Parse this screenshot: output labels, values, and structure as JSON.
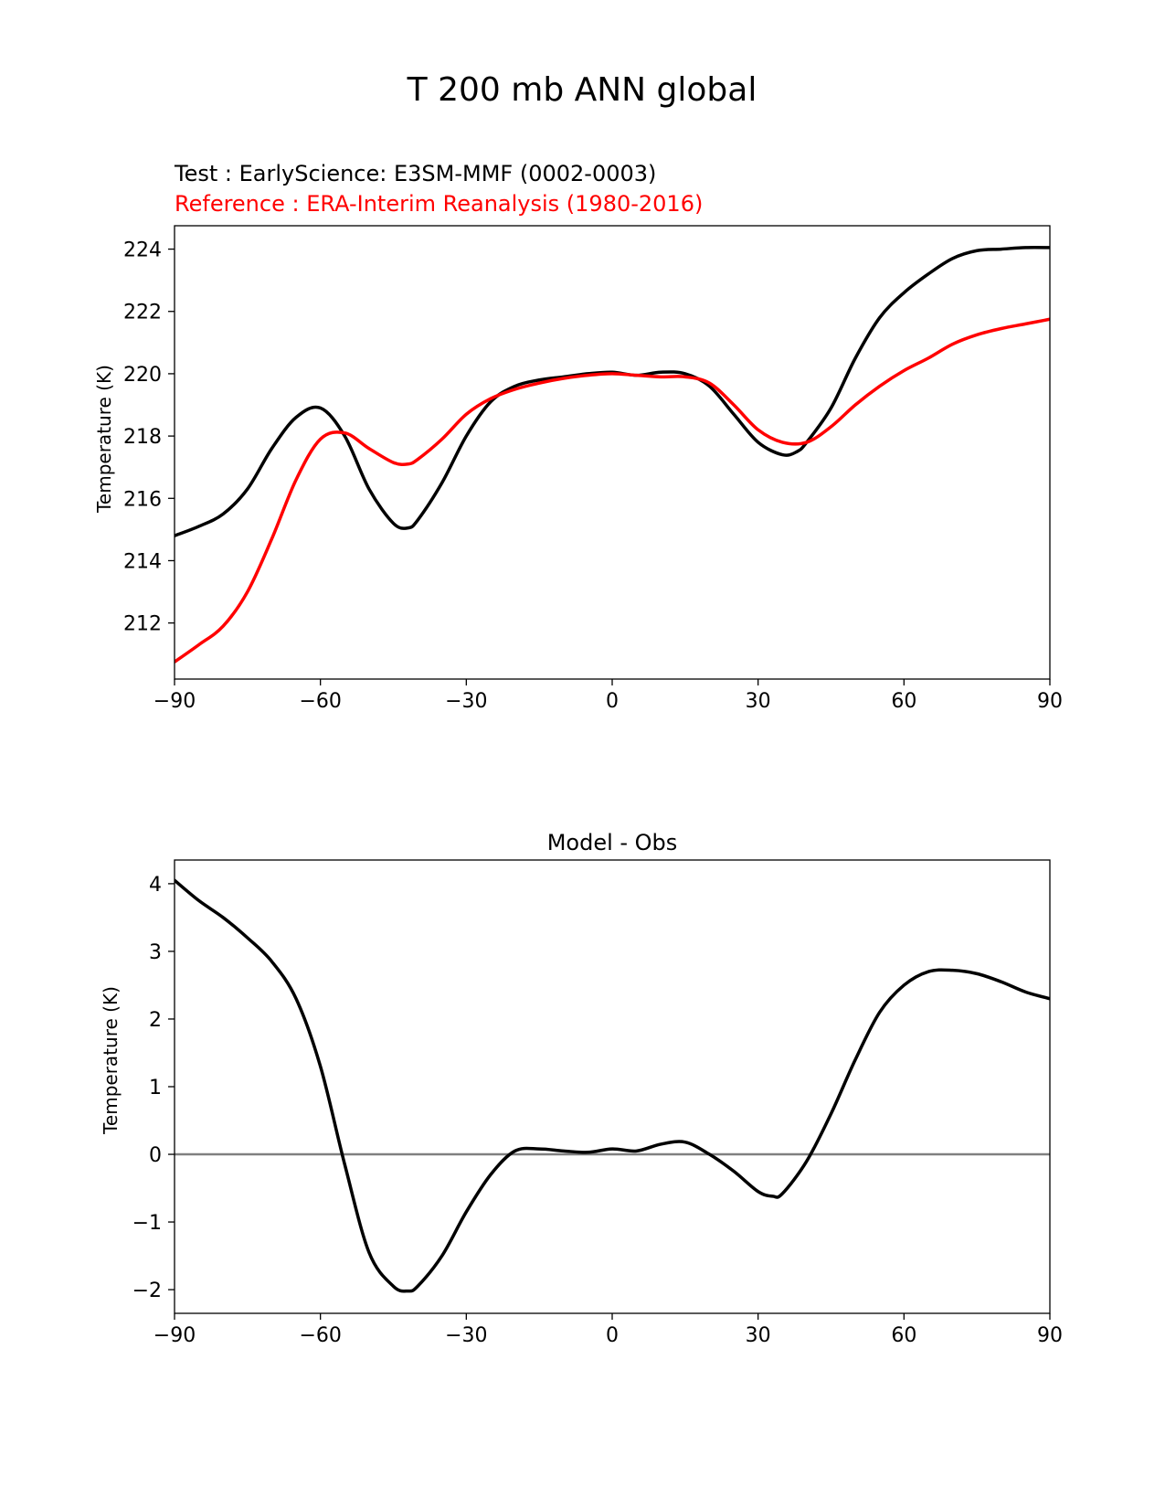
{
  "suptitle": "T 200 mb ANN global",
  "colors": {
    "test": "#000000",
    "reference": "#ff0000",
    "zero_line": "#808080",
    "axis": "#000000"
  },
  "chart_data": [
    {
      "type": "line",
      "title": "",
      "test_label": "Test : EarlyScience: E3SM-MMF (0002-0003)",
      "reference_label": "Reference : ERA-Interim Reanalysis (1980-2016)",
      "xlabel": "",
      "ylabel": "Temperature (K)",
      "xlim": [
        -90,
        90
      ],
      "ylim": [
        210.2,
        224.75
      ],
      "xticks": [
        -90,
        -60,
        -30,
        0,
        30,
        60,
        90
      ],
      "xtick_labels": [
        "−90",
        "−60",
        "−30",
        "0",
        "30",
        "60",
        "90"
      ],
      "yticks": [
        212,
        214,
        216,
        218,
        220,
        222,
        224
      ],
      "yticks_labels": [
        "212",
        "214",
        "216",
        "218",
        "220",
        "222",
        "224"
      ],
      "series": [
        {
          "name": "Test : EarlyScience: E3SM-MMF (0002-0003)",
          "color": "#000000",
          "x": [
            -90,
            -85,
            -80,
            -75,
            -70,
            -65,
            -60,
            -55,
            -50,
            -45,
            -42,
            -40,
            -35,
            -30,
            -25,
            -20,
            -15,
            -10,
            -5,
            0,
            5,
            10,
            15,
            20,
            25,
            30,
            35,
            38,
            40,
            45,
            50,
            55,
            60,
            65,
            70,
            75,
            80,
            85,
            90
          ],
          "y": [
            214.8,
            215.1,
            215.5,
            216.3,
            217.6,
            218.6,
            218.9,
            218.0,
            216.3,
            215.2,
            215.05,
            215.3,
            216.5,
            218.0,
            219.1,
            219.6,
            219.8,
            219.9,
            220.0,
            220.05,
            219.95,
            220.05,
            220.0,
            219.6,
            218.7,
            217.8,
            217.4,
            217.5,
            217.8,
            218.9,
            220.5,
            221.8,
            222.6,
            223.2,
            223.7,
            223.95,
            224.0,
            224.05,
            224.05
          ]
        },
        {
          "name": "Reference : ERA-Interim Reanalysis (1980-2016)",
          "color": "#ff0000",
          "x": [
            -90,
            -85,
            -80,
            -75,
            -70,
            -65,
            -60,
            -55,
            -50,
            -45,
            -42,
            -40,
            -35,
            -30,
            -25,
            -20,
            -15,
            -10,
            -5,
            0,
            5,
            10,
            15,
            20,
            25,
            30,
            35,
            40,
            45,
            50,
            55,
            60,
            65,
            70,
            75,
            80,
            85,
            90
          ],
          "y": [
            210.75,
            211.3,
            211.9,
            213.0,
            214.7,
            216.6,
            217.9,
            218.1,
            217.6,
            217.15,
            217.1,
            217.25,
            217.9,
            218.7,
            219.2,
            219.5,
            219.7,
            219.85,
            219.95,
            220.0,
            219.95,
            219.9,
            219.9,
            219.7,
            219.0,
            218.2,
            217.8,
            217.8,
            218.3,
            219.0,
            219.6,
            220.1,
            220.5,
            220.95,
            221.25,
            221.45,
            221.6,
            221.75
          ]
        }
      ]
    },
    {
      "type": "line",
      "title": "Model - Obs",
      "xlabel": "",
      "ylabel": "Temperature (K)",
      "xlim": [
        -90,
        90
      ],
      "ylim": [
        -2.35,
        4.35
      ],
      "xticks": [
        -90,
        -60,
        -30,
        0,
        30,
        60,
        90
      ],
      "xtick_labels": [
        "−90",
        "−60",
        "−30",
        "0",
        "30",
        "60",
        "90"
      ],
      "yticks": [
        -2,
        -1,
        0,
        1,
        2,
        3,
        4
      ],
      "yticks_labels": [
        "−2",
        "−1",
        "0",
        "1",
        "2",
        "3",
        "4"
      ],
      "zero_line": 0,
      "series": [
        {
          "name": "Model - Obs",
          "color": "#000000",
          "x": [
            -90,
            -85,
            -80,
            -75,
            -70,
            -65,
            -60,
            -55,
            -50,
            -45,
            -42,
            -40,
            -35,
            -30,
            -25,
            -20,
            -15,
            -10,
            -5,
            0,
            5,
            10,
            15,
            20,
            25,
            30,
            33,
            35,
            40,
            45,
            50,
            55,
            60,
            65,
            70,
            75,
            80,
            85,
            90
          ],
          "y": [
            4.05,
            3.75,
            3.5,
            3.2,
            2.85,
            2.3,
            1.3,
            -0.15,
            -1.45,
            -1.95,
            -2.02,
            -1.95,
            -1.5,
            -0.85,
            -0.3,
            0.05,
            0.08,
            0.05,
            0.03,
            0.08,
            0.05,
            0.15,
            0.18,
            0.0,
            -0.25,
            -0.55,
            -0.62,
            -0.58,
            -0.1,
            0.6,
            1.4,
            2.1,
            2.5,
            2.7,
            2.72,
            2.67,
            2.55,
            2.4,
            2.3
          ]
        }
      ]
    }
  ]
}
